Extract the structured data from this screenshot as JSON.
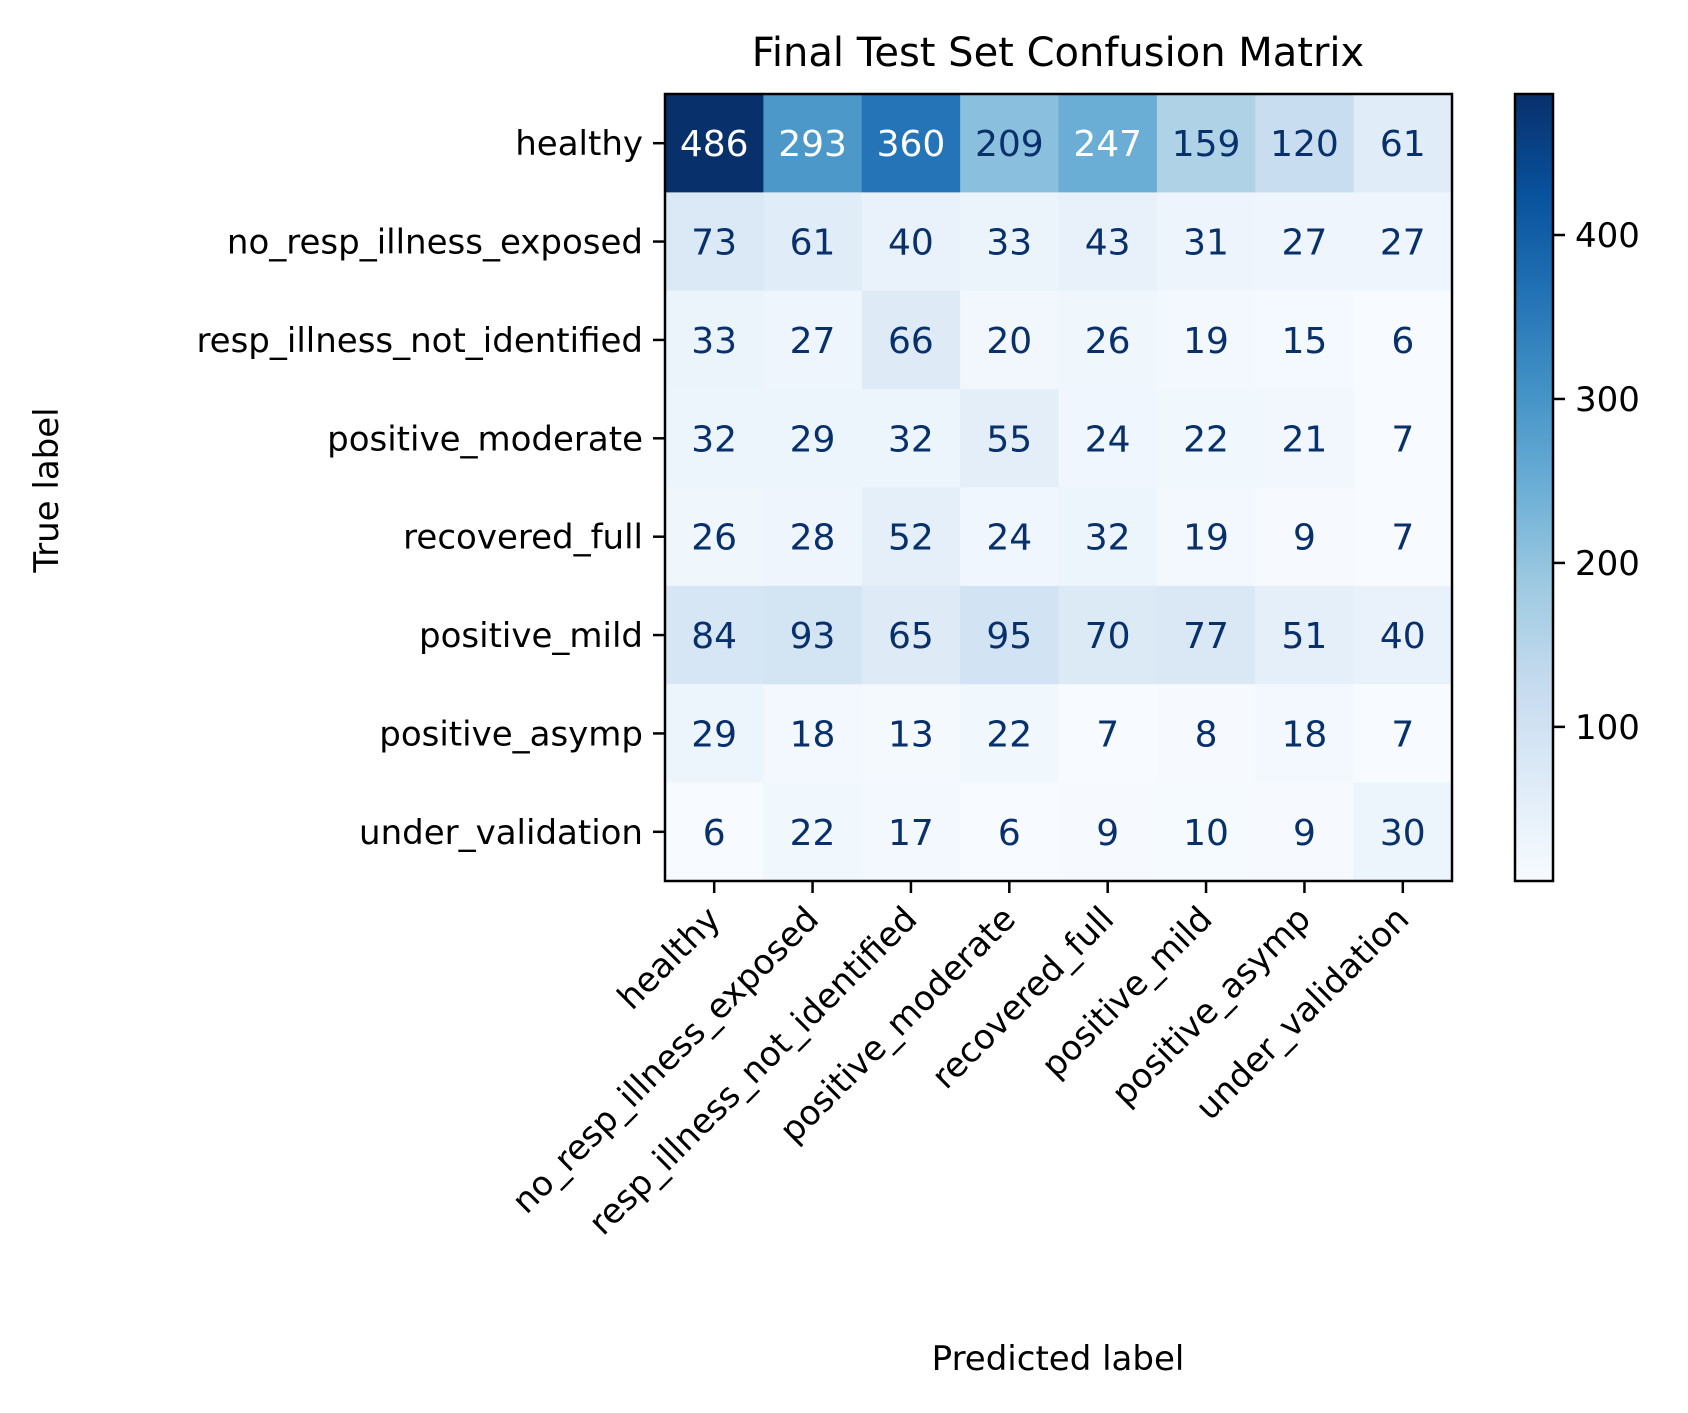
{
  "chart_data": {
    "type": "heatmap",
    "title": "Final Test Set Confusion Matrix",
    "xlabel": "Predicted label",
    "ylabel": "True label",
    "row_labels": [
      "healthy",
      "no_resp_illness_exposed",
      "resp_illness_not_identified",
      "positive_moderate",
      "recovered_full",
      "positive_mild",
      "positive_asymp",
      "under_validation"
    ],
    "col_labels": [
      "healthy",
      "no_resp_illness_exposed",
      "resp_illness_not_identified",
      "positive_moderate",
      "recovered_full",
      "positive_mild",
      "positive_asymp",
      "under_validation"
    ],
    "values": [
      [
        486,
        293,
        360,
        209,
        247,
        159,
        120,
        61
      ],
      [
        73,
        61,
        40,
        33,
        43,
        31,
        27,
        27
      ],
      [
        33,
        27,
        66,
        20,
        26,
        19,
        15,
        6
      ],
      [
        32,
        29,
        32,
        55,
        24,
        22,
        21,
        7
      ],
      [
        26,
        28,
        52,
        24,
        32,
        19,
        9,
        7
      ],
      [
        84,
        93,
        65,
        95,
        70,
        77,
        51,
        40
      ],
      [
        29,
        18,
        13,
        22,
        7,
        8,
        18,
        7
      ],
      [
        6,
        22,
        17,
        6,
        9,
        10,
        9,
        30
      ]
    ],
    "colormap": "Blues",
    "colorbar": {
      "range": [
        6,
        486
      ],
      "ticks": [
        100,
        200,
        300,
        400
      ],
      "tick_labels": [
        "100",
        "200",
        "300",
        "400"
      ]
    },
    "text_colors": {
      "light_cells": "#08306b",
      "dark_cells": "#ffffff"
    },
    "grid": false
  }
}
